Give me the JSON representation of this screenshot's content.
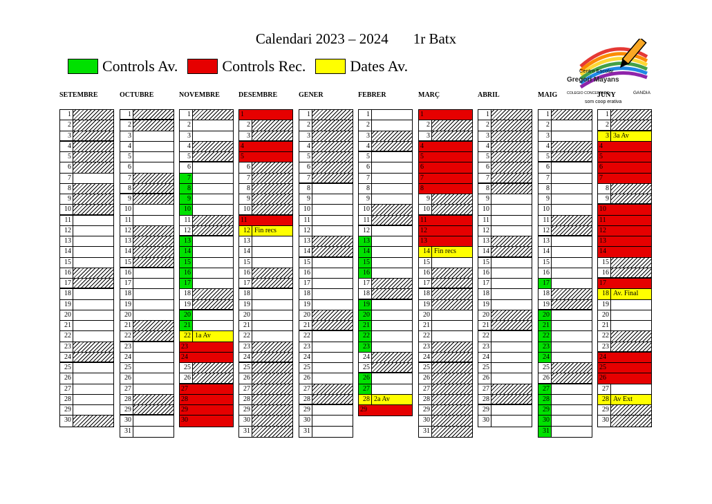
{
  "title": {
    "main": "Calendari 2023 – 2024",
    "course": "1r Batx"
  },
  "legend": [
    {
      "label": "Controls Av.",
      "color": "#00e100"
    },
    {
      "label": "Controls Rec.",
      "color": "#e60000"
    },
    {
      "label": "Dates Av.",
      "color": "#ffff00"
    }
  ],
  "logo": {
    "line1": "Centro Escolar",
    "line2": "Gregori Mayans",
    "line3": "COLEGIO CONCERTADO",
    "line4": "GANDIA",
    "line5": "som coop erativa",
    "icon": "pencil-rainbow-logo"
  },
  "months": [
    {
      "name": "SETEMBRE",
      "days": 30,
      "weekend": [
        2,
        3,
        9,
        10,
        16,
        17,
        23,
        24,
        30
      ],
      "holiday": [
        1,
        4,
        5,
        6,
        8
      ],
      "green": [],
      "red": [],
      "notes": {}
    },
    {
      "name": "OCTUBRE",
      "days": 31,
      "weekend": [
        1,
        7,
        8,
        14,
        15,
        21,
        22,
        28,
        29
      ],
      "holiday": [
        2,
        9,
        12,
        13
      ],
      "green": [],
      "red": [],
      "notes": {}
    },
    {
      "name": "NOVEMBRE",
      "days": 30,
      "weekend": [
        4,
        5,
        11,
        12,
        18,
        19,
        25,
        26
      ],
      "holiday": [
        1
      ],
      "green": [
        7,
        8,
        9,
        10,
        13,
        14,
        15,
        16,
        17,
        20,
        21
      ],
      "red": [
        23,
        24,
        27,
        28,
        29,
        30
      ],
      "notes": {
        "22": "1a Av"
      }
    },
    {
      "name": "DESEMBRE",
      "days": 31,
      "weekend": [
        2,
        3,
        9,
        10,
        16,
        17,
        23,
        24,
        30,
        31
      ],
      "holiday": [
        6,
        7,
        8,
        25,
        26,
        27,
        28,
        29
      ],
      "green": [],
      "red": [
        1,
        4,
        5,
        11
      ],
      "notes": {
        "12": "Fin recs"
      }
    },
    {
      "name": "GENER",
      "days": 31,
      "weekend": [
        6,
        7,
        13,
        14,
        20,
        21,
        27,
        28
      ],
      "holiday": [
        1,
        2,
        3,
        4,
        5
      ],
      "green": [],
      "red": [],
      "notes": {}
    },
    {
      "name": "FEBRER",
      "days": 29,
      "weekend": [
        3,
        4,
        10,
        11,
        17,
        18,
        24,
        25
      ],
      "holiday": [],
      "green": [
        13,
        14,
        15,
        16,
        19,
        20,
        21,
        22,
        23,
        26,
        27
      ],
      "red": [
        29
      ],
      "notes": {
        "28": "2a Av"
      }
    },
    {
      "name": "MARÇ",
      "days": 31,
      "weekend": [
        2,
        3,
        9,
        10,
        16,
        17,
        23,
        24,
        30,
        31
      ],
      "holiday": [
        18,
        19,
        25,
        26,
        27,
        28,
        29
      ],
      "green": [],
      "red": [
        1,
        4,
        5,
        6,
        7,
        8,
        11,
        12,
        13
      ],
      "notes": {
        "14": "Fin recs"
      }
    },
    {
      "name": "ABRIL",
      "days": 30,
      "weekend": [
        6,
        7,
        13,
        14,
        20,
        21,
        27,
        28
      ],
      "holiday": [
        1,
        2,
        3,
        4,
        5,
        8
      ],
      "green": [],
      "red": [],
      "notes": {}
    },
    {
      "name": "MAIG",
      "days": 31,
      "weekend": [
        4,
        5,
        11,
        12,
        18,
        19,
        25,
        26
      ],
      "holiday": [
        1
      ],
      "green": [
        17,
        20,
        21,
        22,
        23,
        24,
        27,
        28,
        29,
        30,
        31
      ],
      "red": [],
      "notes": {}
    },
    {
      "name": "JUNY",
      "days": 30,
      "weekend": [
        1,
        2,
        8,
        9,
        15,
        16,
        22,
        23,
        29,
        30
      ],
      "holiday": [],
      "green": [],
      "red": [
        4,
        5,
        6,
        7,
        10,
        11,
        12,
        13,
        14,
        17,
        24,
        25,
        26
      ],
      "notes": {
        "3": "3a Av",
        "18": "Av. Final",
        "28": "Av Ext"
      }
    }
  ]
}
